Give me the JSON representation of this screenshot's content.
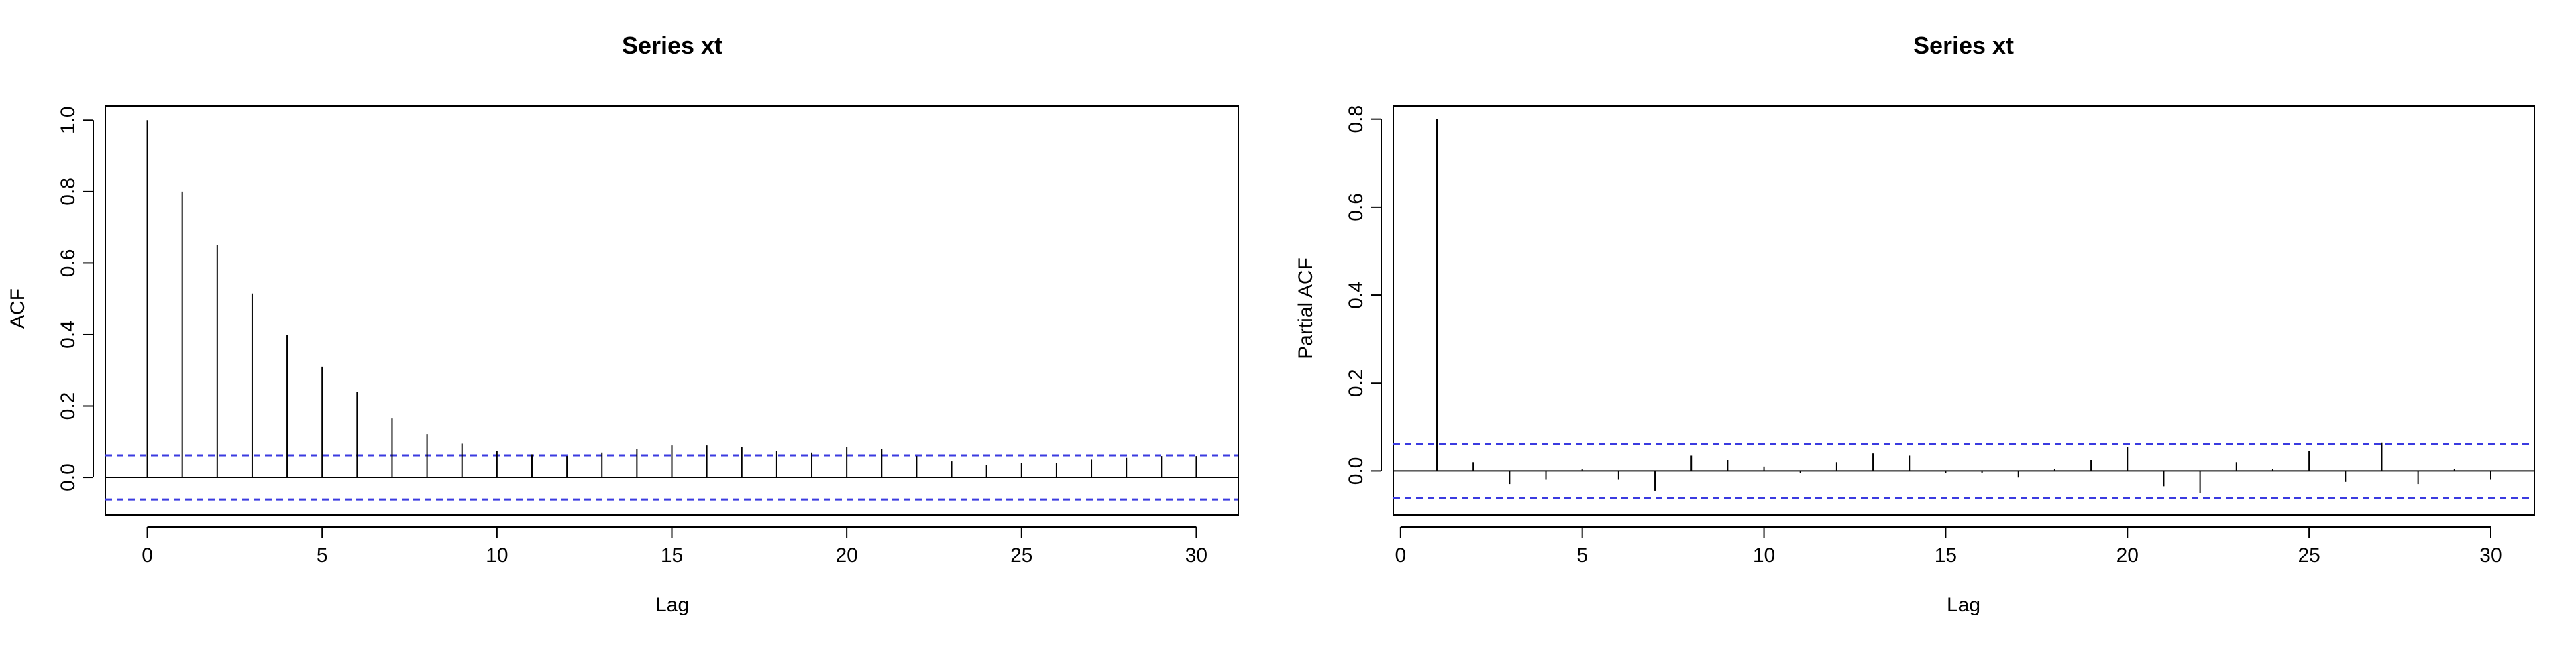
{
  "chart_data": [
    {
      "type": "bar",
      "title": "Series  xt",
      "xlabel": "Lag",
      "ylabel": "ACF",
      "xlim": [
        -1.2,
        31.2
      ],
      "ylim": [
        -0.105,
        1.04
      ],
      "xticks": [
        0,
        5,
        10,
        15,
        20,
        25,
        30
      ],
      "yticks": [
        0.0,
        0.2,
        0.4,
        0.6,
        0.8,
        1.0
      ],
      "ytick_labels": [
        "0.0",
        "0.2",
        "0.4",
        "0.6",
        "0.8",
        "1.0"
      ],
      "conf_bound": 0.062,
      "grid": false,
      "x": [
        0,
        1,
        2,
        3,
        4,
        5,
        6,
        7,
        8,
        9,
        10,
        11,
        12,
        13,
        14,
        15,
        16,
        17,
        18,
        19,
        20,
        21,
        22,
        23,
        24,
        25,
        26,
        27,
        28,
        29,
        30
      ],
      "values": [
        1.0,
        0.8,
        0.65,
        0.515,
        0.4,
        0.31,
        0.24,
        0.165,
        0.12,
        0.095,
        0.075,
        0.065,
        0.06,
        0.07,
        0.08,
        0.09,
        0.09,
        0.085,
        0.075,
        0.07,
        0.085,
        0.08,
        0.06,
        0.045,
        0.035,
        0.04,
        0.04,
        0.05,
        0.055,
        0.06,
        0.06
      ],
      "colors": {
        "stem": "#000000",
        "conf": "#3b3be0",
        "axis": "#000000"
      }
    },
    {
      "type": "bar",
      "title": "Series  xt",
      "xlabel": "Lag",
      "ylabel": "Partial ACF",
      "xlim": [
        -0.2,
        31.2
      ],
      "ylim": [
        -0.1,
        0.83
      ],
      "xticks": [
        0,
        5,
        10,
        15,
        20,
        25,
        30
      ],
      "yticks": [
        0.0,
        0.2,
        0.4,
        0.6,
        0.8
      ],
      "ytick_labels": [
        "0.0",
        "0.2",
        "0.4",
        "0.6",
        "0.8"
      ],
      "conf_bound": 0.062,
      "grid": false,
      "x": [
        1,
        2,
        3,
        4,
        5,
        6,
        7,
        8,
        9,
        10,
        11,
        12,
        13,
        14,
        15,
        16,
        17,
        18,
        19,
        20,
        21,
        22,
        23,
        24,
        25,
        26,
        27,
        28,
        29,
        30
      ],
      "values": [
        0.8,
        0.02,
        -0.03,
        -0.02,
        0.005,
        -0.02,
        -0.045,
        0.035,
        0.025,
        0.01,
        -0.005,
        0.02,
        0.04,
        0.035,
        -0.005,
        -0.005,
        -0.015,
        0.005,
        0.025,
        0.055,
        -0.035,
        -0.05,
        0.02,
        0.005,
        0.045,
        -0.025,
        0.065,
        -0.03,
        0.005,
        -0.02
      ],
      "colors": {
        "stem": "#000000",
        "conf": "#3b3be0",
        "axis": "#000000"
      }
    }
  ]
}
